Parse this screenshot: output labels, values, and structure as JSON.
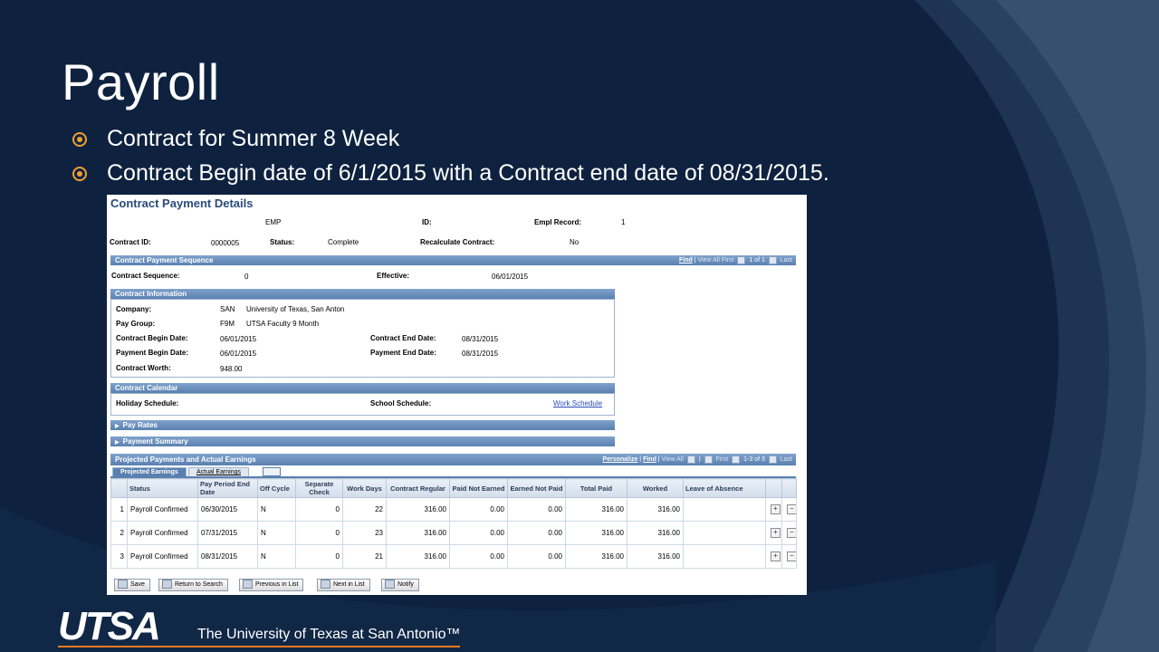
{
  "slide": {
    "title": "Payroll",
    "bullets": [
      "Contract for Summer 8 Week",
      "Contract Begin date of 6/1/2015 with a Contract end date of 08/31/2015."
    ]
  },
  "colors": {
    "background": "#0f2340",
    "bullet_accent": "#f0a030",
    "panel_header": "#5a80b0",
    "logo_underline": "#f07a20"
  },
  "panel": {
    "title": "Contract Payment Details",
    "header": {
      "emp_label": "EMP",
      "id_label": "ID:",
      "empl_record_label": "Empl Record:",
      "empl_record_value": "1",
      "contract_id_label": "Contract ID:",
      "contract_id_value": "0000005",
      "status_label": "Status:",
      "status_value": "Complete",
      "recalc_label": "Recalculate Contract:",
      "recalc_value": "No"
    },
    "sequence": {
      "bar": "Contract Payment Sequence",
      "nav_find": "Find",
      "nav_view_all": "View All",
      "nav_first": "First",
      "nav_count": "1 of 1",
      "nav_last": "Last",
      "seq_label": "Contract Sequence:",
      "seq_value": "0",
      "effective_label": "Effective:",
      "effective_value": "06/01/2015"
    },
    "info": {
      "bar": "Contract Information",
      "company_label": "Company:",
      "company_code": "SAN",
      "company_name": "University of Texas, San Anton",
      "paygroup_label": "Pay Group:",
      "paygroup_code": "F9M",
      "paygroup_name": "UTSA Faculty 9 Month",
      "begin_label": "Contract Begin Date:",
      "begin_value": "06/01/2015",
      "end_label": "Contract End Date:",
      "end_value": "08/31/2015",
      "pay_begin_label": "Payment Begin Date:",
      "pay_begin_value": "06/01/2015",
      "pay_end_label": "Payment End Date:",
      "pay_end_value": "08/31/2015",
      "worth_label": "Contract Worth:",
      "worth_value": "948.00"
    },
    "calendar": {
      "bar": "Contract Calendar",
      "holiday_label": "Holiday Schedule:",
      "school_label": "School Schedule:",
      "work_link": "Work Schedule"
    },
    "pay_rates_bar": "Pay Rates",
    "payment_summary_bar": "Payment Summary",
    "projected": {
      "bar": "Projected Payments and Actual Earnings",
      "nav_personalize": "Personalize",
      "nav_find": "Find",
      "nav_view_all": "View All",
      "nav_first": "First",
      "nav_count": "1-3 of 3",
      "nav_last": "Last",
      "tabs": [
        "Projected Earnings",
        "Actual Earnings"
      ],
      "columns": [
        "Status",
        "Pay Period End Date",
        "Off Cycle",
        "Separate Check",
        "Work Days",
        "Contract Regular",
        "Paid Not Earned",
        "Earned Not Paid",
        "Total Paid",
        "Worked",
        "Leave of Absence"
      ],
      "rows": [
        {
          "n": "1",
          "status": "Payroll Confirmed",
          "end": "06/30/2015",
          "off": "N",
          "sep": "0",
          "days": "22",
          "reg": "316.00",
          "pne": "0.00",
          "enp": "0.00",
          "total": "316.00",
          "worked": "316.00",
          "loa": ""
        },
        {
          "n": "2",
          "status": "Payroll Confirmed",
          "end": "07/31/2015",
          "off": "N",
          "sep": "0",
          "days": "23",
          "reg": "316.00",
          "pne": "0.00",
          "enp": "0.00",
          "total": "316.00",
          "worked": "316.00",
          "loa": ""
        },
        {
          "n": "3",
          "status": "Payroll Confirmed",
          "end": "08/31/2015",
          "off": "N",
          "sep": "0",
          "days": "21",
          "reg": "316.00",
          "pne": "0.00",
          "enp": "0.00",
          "total": "316.00",
          "worked": "316.00",
          "loa": ""
        }
      ]
    },
    "toolbar": {
      "save": "Save",
      "return": "Return to Search",
      "previous": "Previous in List",
      "next": "Next in List",
      "notify": "Notify"
    }
  },
  "footer": {
    "logo": "UTSA",
    "tagline": "The University of Texas at San Antonio™"
  }
}
